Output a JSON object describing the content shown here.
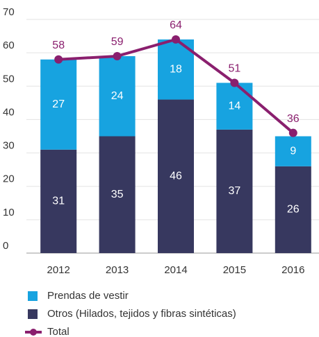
{
  "chart_data": {
    "type": "bar",
    "stacked": true,
    "categories": [
      "2012",
      "2013",
      "2014",
      "2015",
      "2016"
    ],
    "series": [
      {
        "name": "Otros (Hilados, tejidos y fibras sintéticas)",
        "color": "#37385f",
        "values": [
          31,
          35,
          46,
          37,
          26
        ]
      },
      {
        "name": "Prendas de vestir",
        "color": "#17a3e0",
        "values": [
          27,
          24,
          18,
          14,
          9
        ]
      },
      {
        "name": "Total",
        "type": "line",
        "color": "#8a1f6e",
        "values": [
          58,
          59,
          64,
          51,
          36
        ]
      }
    ],
    "ylim": [
      0,
      70
    ],
    "yticks": [
      0,
      10,
      20,
      30,
      40,
      50,
      60,
      70
    ],
    "grid": true
  }
}
